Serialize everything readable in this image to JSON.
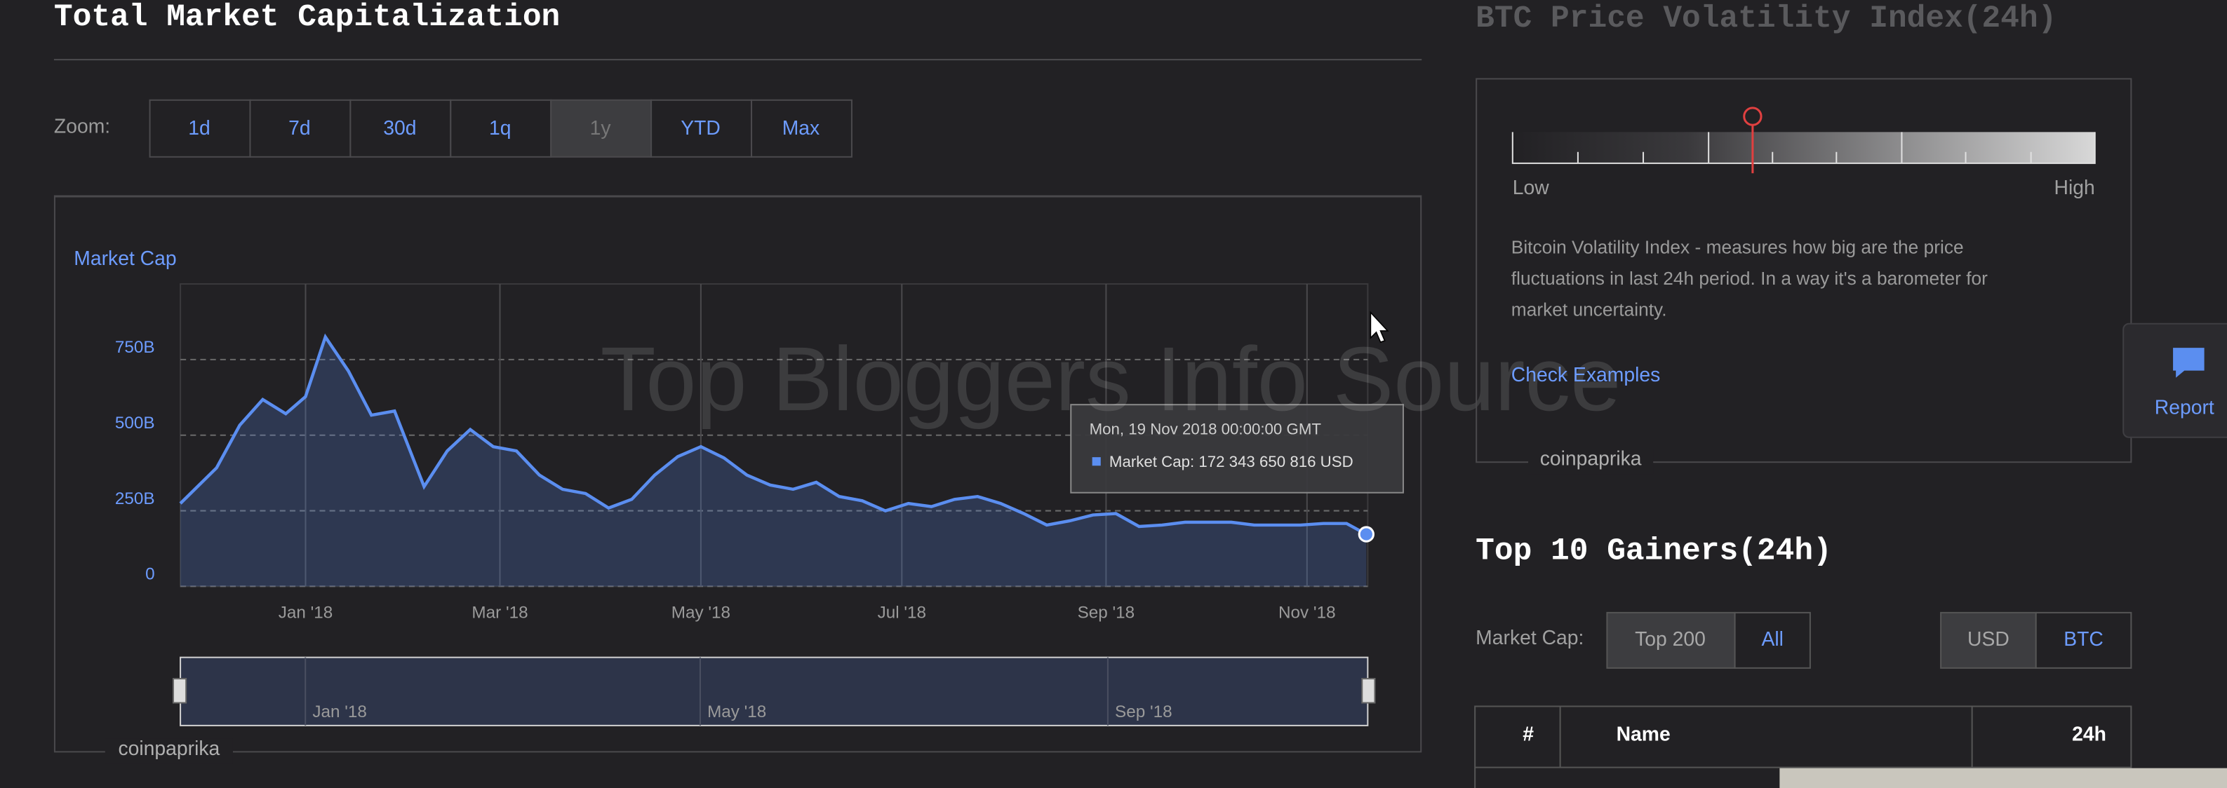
{
  "header": {
    "title": "Total Market Capitalization"
  },
  "zoom": {
    "label": "Zoom:",
    "buttons": [
      "1d",
      "7d",
      "30d",
      "1q",
      "1y",
      "YTD",
      "Max"
    ],
    "active": 4
  },
  "chart_data": {
    "type": "area",
    "y_label": "Market Cap",
    "color": "#5b8ef0",
    "x": [
      "2017-11-24",
      "2017-12-05",
      "2017-12-12",
      "2017-12-19",
      "2017-12-26",
      "2018-01-01",
      "2018-01-07",
      "2018-01-14",
      "2018-01-21",
      "2018-01-28",
      "2018-02-06",
      "2018-02-13",
      "2018-02-20",
      "2018-02-27",
      "2018-03-06",
      "2018-03-13",
      "2018-03-20",
      "2018-03-27",
      "2018-04-03",
      "2018-04-10",
      "2018-04-17",
      "2018-04-24",
      "2018-05-01",
      "2018-05-08",
      "2018-05-15",
      "2018-05-22",
      "2018-05-29",
      "2018-06-05",
      "2018-06-12",
      "2018-06-19",
      "2018-06-26",
      "2018-07-03",
      "2018-07-10",
      "2018-07-17",
      "2018-07-24",
      "2018-07-31",
      "2018-08-07",
      "2018-08-14",
      "2018-08-21",
      "2018-08-28",
      "2018-09-04",
      "2018-09-11",
      "2018-09-18",
      "2018-09-25",
      "2018-10-02",
      "2018-10-09",
      "2018-10-16",
      "2018-10-23",
      "2018-10-30",
      "2018-11-06",
      "2018-11-13",
      "2018-11-19"
    ],
    "values": [
      274,
      392,
      533,
      618,
      571,
      627,
      825,
      712,
      566,
      580,
      330,
      448,
      519,
      462,
      448,
      368,
      321,
      307,
      259,
      288,
      368,
      429,
      462,
      425,
      368,
      335,
      321,
      344,
      297,
      283,
      250,
      274,
      264,
      288,
      297,
      274,
      241,
      203,
      217,
      236,
      241,
      198,
      203,
      212,
      212,
      212,
      203,
      203,
      203,
      208,
      208,
      172.343650816
    ],
    "xlim": [
      "2017-11-24",
      "2018-11-19"
    ],
    "ylim": [
      0,
      1000
    ],
    "yticks": [
      0,
      {
        "value": 250,
        "label": "250B"
      },
      {
        "value": 500,
        "label": "500B"
      },
      {
        "value": 750,
        "label": "750B"
      }
    ],
    "xticks": [
      {
        "value": "2018-01-01",
        "label": "Jan '18"
      },
      {
        "value": "2018-03-01",
        "label": "Mar '18"
      },
      {
        "value": "2018-05-01",
        "label": "May '18"
      },
      {
        "value": "2018-07-01",
        "label": "Jul '18"
      },
      {
        "value": "2018-09-01",
        "label": "Sep '18"
      },
      {
        "value": "2018-11-01",
        "label": "Nov '18"
      }
    ],
    "grid": true
  },
  "tooltip": {
    "date": "Mon, 19 Nov 2018 00:00:00 GMT",
    "text": "Market Cap: 172 343 650 816 USD"
  },
  "navigator": {
    "labels": [
      "Jan '18",
      "May '18",
      "Sep '18"
    ]
  },
  "watermark": "Top Bloggers Info Source",
  "credit": "coinpaprika",
  "volatility": {
    "title": "BTC Price Volatility Index(24h)",
    "low": "Low",
    "high": "High",
    "description": [
      "Bitcoin Volatility Index - measures how big are the price",
      "fluctuations in last 24h period. In a way it's a barometer for",
      "market uncertainty."
    ],
    "link": "Check Examples",
    "credit": "coinpaprika"
  },
  "gainers": {
    "title": "Top 10 Gainers(24h)",
    "filter_label": "Market Cap:",
    "cap_options": [
      "Top 200",
      "All"
    ],
    "currency_options": [
      "USD",
      "BTC"
    ],
    "columns": [
      "#",
      "Name",
      "24h"
    ]
  },
  "report": "Report"
}
